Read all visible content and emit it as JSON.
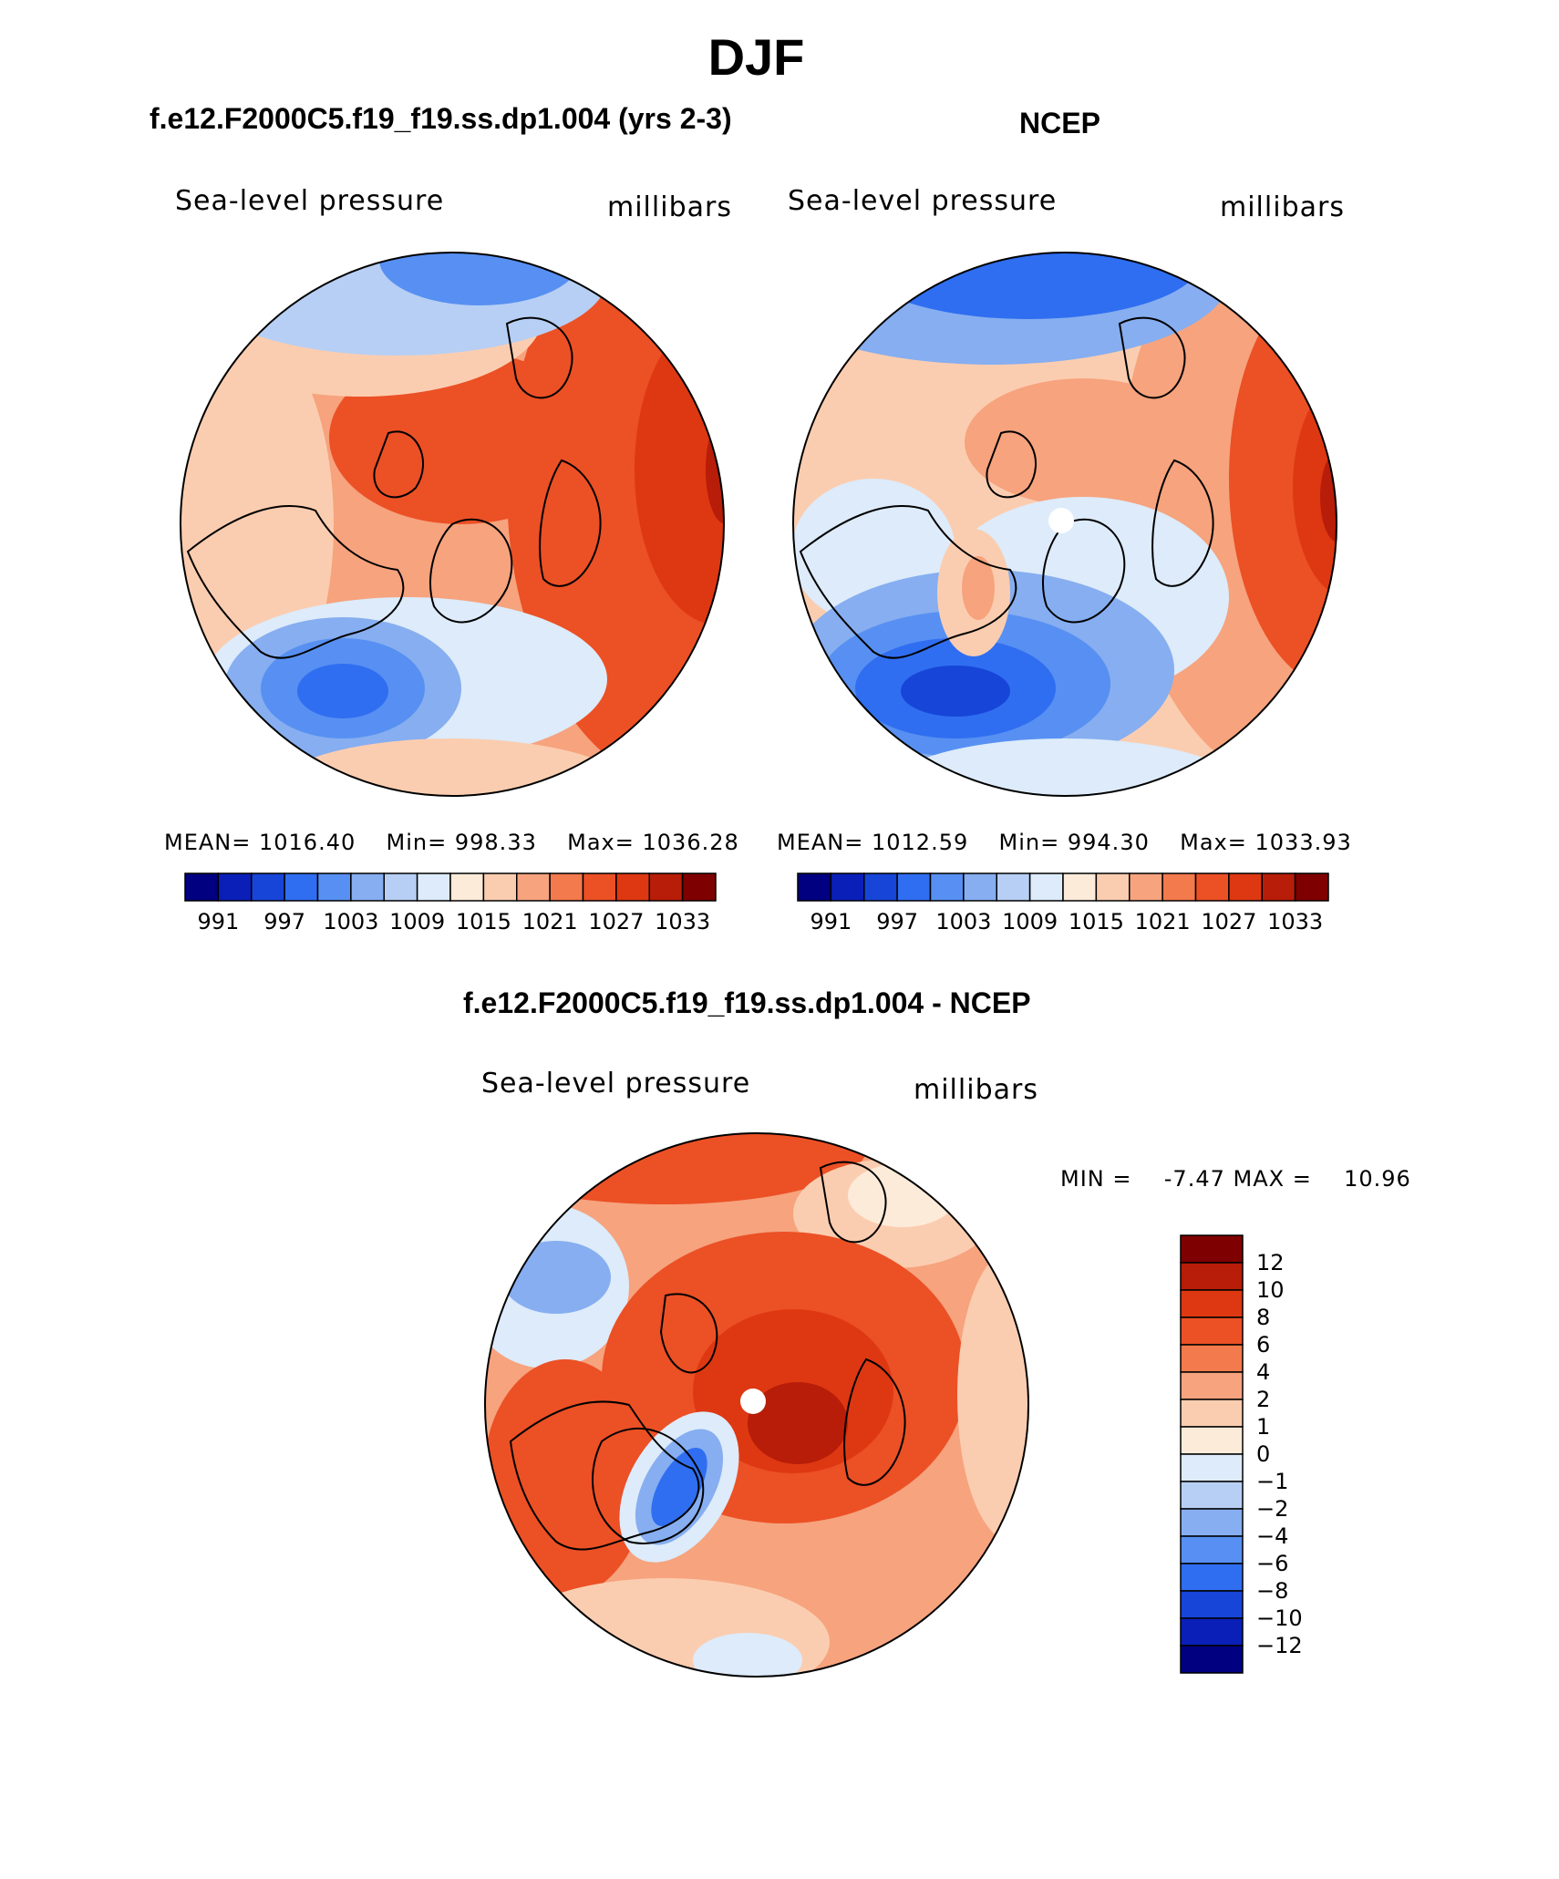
{
  "page": {
    "title": "DJF"
  },
  "colors": {
    "levels_abs": [
      "#000080",
      "#0a1fb8",
      "#1745d8",
      "#2f6ef0",
      "#5790f2",
      "#86aef0",
      "#b7cff4",
      "#ddebfa",
      "#fdebd9",
      "#fbcdb0",
      "#f6a37e",
      "#f27a4c",
      "#ec5025",
      "#de3812",
      "#b71d08",
      "#7f0000"
    ],
    "levels_diff": [
      "#000080",
      "#0a1fb8",
      "#1745d8",
      "#2f6ef0",
      "#5790f2",
      "#86aef0",
      "#b7cff4",
      "#ddebfa",
      "#fdebd9",
      "#fbcdb0",
      "#f6a37e",
      "#f27a4c",
      "#ec5025",
      "#de3812",
      "#b71d08",
      "#7f0000"
    ]
  },
  "chart_data": [
    {
      "type": "heatmap",
      "projection": "north-polar-stereographic",
      "title": "f.e12.F2000C5.f19_f19.ss.dp1.004 (yrs 2-3)",
      "left_label": "Sea-level pressure",
      "right_label": "millibars",
      "stats": {
        "mean_label": "MEAN=",
        "mean": "1016.40",
        "min_label": "Min=",
        "min": "998.33",
        "max_label": "Max=",
        "max": "1036.28"
      },
      "colorbar": {
        "orientation": "horizontal",
        "tick_labels": [
          "991",
          "997",
          "1003",
          "1009",
          "1015",
          "1021",
          "1027",
          "1033"
        ]
      }
    },
    {
      "type": "heatmap",
      "projection": "north-polar-stereographic",
      "title": "NCEP",
      "left_label": "Sea-level pressure",
      "right_label": "millibars",
      "stats": {
        "mean_label": "MEAN=",
        "mean": "1012.59",
        "min_label": "Min=",
        "min": "994.30",
        "max_label": "Max=",
        "max": "1033.93"
      },
      "colorbar": {
        "orientation": "horizontal",
        "tick_labels": [
          "991",
          "997",
          "1003",
          "1009",
          "1015",
          "1021",
          "1027",
          "1033"
        ]
      }
    },
    {
      "type": "heatmap",
      "projection": "north-polar-stereographic",
      "title": "f.e12.F2000C5.f19_f19.ss.dp1.004 - NCEP",
      "left_label": "Sea-level pressure",
      "right_label": "millibars",
      "stats": {
        "min_label": "MIN =",
        "min": "-7.47",
        "max_label": "MAX =",
        "max": "10.96"
      },
      "colorbar": {
        "orientation": "vertical",
        "tick_labels": [
          "12",
          "10",
          "8",
          "6",
          "4",
          "2",
          "1",
          "0",
          "−1",
          "−2",
          "−4",
          "−6",
          "−8",
          "−10",
          "−12"
        ]
      }
    }
  ]
}
